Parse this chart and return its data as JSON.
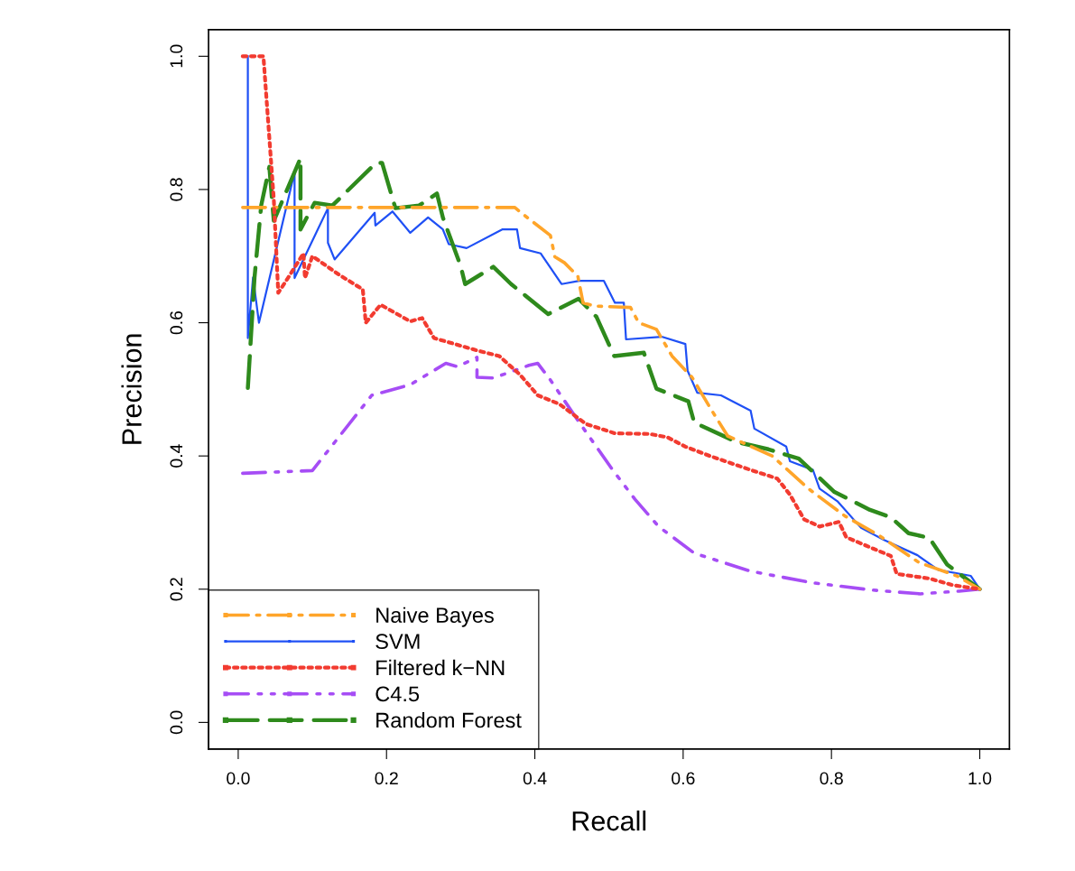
{
  "chart_data": {
    "type": "line",
    "xlabel": "Recall",
    "ylabel": "Precision",
    "xlim": [
      -0.04,
      1.04
    ],
    "ylim": [
      -0.04,
      1.04
    ],
    "xticks": [
      {
        "value": 0,
        "label": "0.0"
      },
      0.2,
      0.4,
      0.6,
      0.8,
      {
        "value": 1,
        "label": "1.0"
      }
    ],
    "yticks": [
      {
        "value": 0,
        "label": "0.0"
      },
      0.2,
      0.4,
      0.6,
      0.8,
      {
        "value": 1,
        "label": "1.0"
      }
    ],
    "grid": false,
    "legend": "bottom left",
    "marker": "none",
    "series": [
      {
        "name": "Naive Bayes",
        "color": "#ffa52a",
        "line_style": "dashdot",
        "x": [
          0.006,
          0.373,
          0.385,
          0.421,
          0.427,
          0.44,
          0.458,
          0.465,
          0.48,
          0.529,
          0.54,
          0.564,
          0.585,
          0.612,
          0.636,
          0.66,
          0.72,
          0.77,
          0.818,
          0.865,
          0.918,
          0.969,
          1.0
        ],
        "values": [
          0.773,
          0.773,
          0.762,
          0.731,
          0.699,
          0.69,
          0.67,
          0.63,
          0.625,
          0.623,
          0.6,
          0.59,
          0.55,
          0.518,
          0.473,
          0.43,
          0.4,
          0.35,
          0.31,
          0.28,
          0.24,
          0.22,
          0.2
        ]
      },
      {
        "name": "SVM",
        "color": "#1f50f5",
        "line_style": "solid",
        "x": [
          0.013,
          0.013,
          0.02,
          0.028,
          0.076,
          0.076,
          0.121,
          0.121,
          0.13,
          0.184,
          0.185,
          0.208,
          0.232,
          0.256,
          0.276,
          0.284,
          0.308,
          0.356,
          0.376,
          0.38,
          0.408,
          0.436,
          0.46,
          0.493,
          0.508,
          0.52,
          0.523,
          0.571,
          0.603,
          0.606,
          0.619,
          0.651,
          0.691,
          0.696,
          0.739,
          0.744,
          0.775,
          0.784,
          0.808,
          0.84,
          0.871,
          0.916,
          0.944,
          0.988,
          1.0
        ],
        "values": [
          1.0,
          0.577,
          0.668,
          0.6,
          0.826,
          0.667,
          0.772,
          0.72,
          0.695,
          0.765,
          0.746,
          0.767,
          0.735,
          0.758,
          0.74,
          0.718,
          0.712,
          0.74,
          0.74,
          0.712,
          0.704,
          0.658,
          0.663,
          0.663,
          0.63,
          0.63,
          0.575,
          0.579,
          0.568,
          0.528,
          0.495,
          0.491,
          0.468,
          0.441,
          0.414,
          0.392,
          0.379,
          0.351,
          0.332,
          0.292,
          0.274,
          0.251,
          0.229,
          0.22,
          0.2
        ]
      },
      {
        "name": "Filtered k−NN",
        "color": "#f23b30",
        "line_style": "dotted",
        "x": [
          0.006,
          0.034,
          0.048,
          0.054,
          0.067,
          0.088,
          0.09,
          0.1,
          0.136,
          0.168,
          0.172,
          0.192,
          0.232,
          0.248,
          0.264,
          0.32,
          0.352,
          0.38,
          0.404,
          0.433,
          0.469,
          0.508,
          0.555,
          0.579,
          0.603,
          0.636,
          0.691,
          0.727,
          0.744,
          0.763,
          0.784,
          0.81,
          0.82,
          0.856,
          0.88,
          0.888,
          0.932,
          0.964,
          1.0
        ],
        "values": [
          1.0,
          1.0,
          0.785,
          0.645,
          0.667,
          0.704,
          0.667,
          0.7,
          0.672,
          0.65,
          0.6,
          0.627,
          0.602,
          0.607,
          0.577,
          0.559,
          0.55,
          0.522,
          0.491,
          0.478,
          0.448,
          0.434,
          0.433,
          0.428,
          0.414,
          0.4,
          0.379,
          0.366,
          0.342,
          0.305,
          0.294,
          0.301,
          0.278,
          0.261,
          0.25,
          0.223,
          0.216,
          0.206,
          0.2
        ]
      },
      {
        "name": "C4.5",
        "color": "#a64df5",
        "line_style": "dashdotdot",
        "x": [
          0.006,
          0.1,
          0.18,
          0.232,
          0.28,
          0.296,
          0.322,
          0.322,
          0.344,
          0.392,
          0.404,
          0.421,
          0.457,
          0.505,
          0.535,
          0.567,
          0.615,
          0.691,
          0.772,
          0.852,
          0.92,
          0.972,
          1.0
        ],
        "values": [
          0.374,
          0.378,
          0.491,
          0.507,
          0.539,
          0.534,
          0.548,
          0.518,
          0.517,
          0.536,
          0.539,
          0.514,
          0.455,
          0.379,
          0.335,
          0.294,
          0.254,
          0.227,
          0.21,
          0.199,
          0.193,
          0.197,
          0.2
        ]
      },
      {
        "name": "Random Forest",
        "color": "#2e8a1c",
        "line_style": "dashed",
        "x": [
          0.013,
          0.022,
          0.031,
          0.042,
          0.048,
          0.084,
          0.084,
          0.103,
          0.127,
          0.186,
          0.194,
          0.212,
          0.244,
          0.268,
          0.276,
          0.3,
          0.306,
          0.344,
          0.368,
          0.418,
          0.459,
          0.483,
          0.507,
          0.547,
          0.564,
          0.607,
          0.615,
          0.672,
          0.715,
          0.756,
          0.804,
          0.852,
          0.88,
          0.904,
          0.932,
          0.956,
          1.0
        ],
        "values": [
          0.502,
          0.668,
          0.776,
          0.834,
          0.753,
          0.847,
          0.74,
          0.78,
          0.776,
          0.84,
          0.84,
          0.772,
          0.776,
          0.794,
          0.758,
          0.685,
          0.658,
          0.684,
          0.658,
          0.613,
          0.636,
          0.609,
          0.55,
          0.555,
          0.501,
          0.482,
          0.45,
          0.421,
          0.41,
          0.396,
          0.346,
          0.319,
          0.308,
          0.284,
          0.277,
          0.237,
          0.2
        ]
      }
    ]
  }
}
